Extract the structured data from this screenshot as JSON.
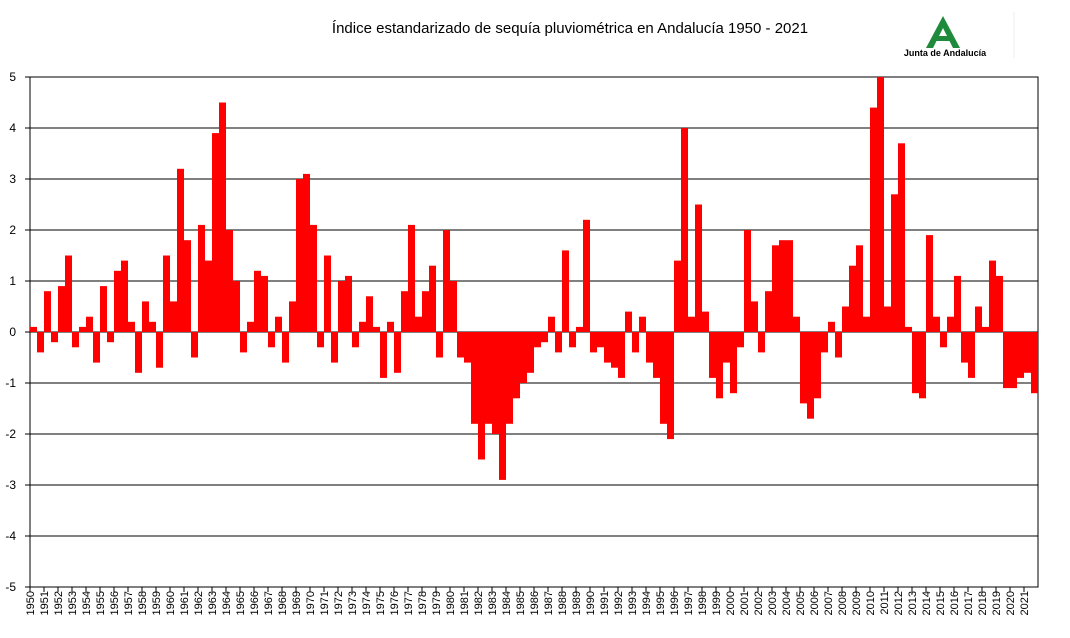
{
  "chart_data": {
    "type": "bar",
    "title": "Índice estandarizado de sequía pluviométrica en Andalucía 1950 - 2021",
    "logo_text": "Junta de Andalucía",
    "color": "#ff0000",
    "grid": true,
    "xlim": [
      1950,
      2022
    ],
    "ylim": [
      -5,
      5
    ],
    "yticks": [
      -5,
      -4,
      -3,
      -2,
      -1,
      0,
      1,
      2,
      3,
      4,
      5
    ],
    "xticks": [
      1950,
      1951,
      1952,
      1953,
      1954,
      1955,
      1956,
      1957,
      1958,
      1959,
      1960,
      1961,
      1962,
      1963,
      1964,
      1965,
      1966,
      1967,
      1968,
      1969,
      1970,
      1971,
      1972,
      1973,
      1974,
      1975,
      1976,
      1977,
      1978,
      1979,
      1980,
      1981,
      1982,
      1983,
      1984,
      1985,
      1986,
      1987,
      1988,
      1989,
      1990,
      1991,
      1992,
      1993,
      1994,
      1995,
      1996,
      1997,
      1998,
      1999,
      2000,
      2001,
      2002,
      2003,
      2004,
      2005,
      2006,
      2007,
      2008,
      2009,
      2010,
      2011,
      2012,
      2013,
      2014,
      2015,
      2016,
      2017,
      2018,
      2019,
      2020,
      2021
    ],
    "x": [
      1950,
      1950.5,
      1951,
      1951.5,
      1952,
      1952.5,
      1953,
      1953.5,
      1954,
      1954.5,
      1955,
      1955.5,
      1956,
      1956.5,
      1957,
      1957.5,
      1958,
      1958.5,
      1959,
      1959.5,
      1960,
      1960.5,
      1961,
      1961.5,
      1962,
      1962.5,
      1963,
      1963.5,
      1964,
      1964.5,
      1965,
      1965.5,
      1966,
      1966.5,
      1967,
      1967.5,
      1968,
      1968.5,
      1969,
      1969.5,
      1970,
      1970.5,
      1971,
      1971.5,
      1972,
      1972.5,
      1973,
      1973.5,
      1974,
      1974.5,
      1975,
      1975.5,
      1976,
      1976.5,
      1977,
      1977.5,
      1978,
      1978.5,
      1979,
      1979.5,
      1980,
      1980.5,
      1981,
      1981.5,
      1982,
      1982.5,
      1983,
      1983.5,
      1984,
      1984.5,
      1985,
      1985.5,
      1986,
      1986.5,
      1987,
      1987.5,
      1988,
      1988.5,
      1989,
      1989.5,
      1990,
      1990.5,
      1991,
      1991.5,
      1992,
      1992.5,
      1993,
      1993.5,
      1994,
      1994.5,
      1995,
      1995.5,
      1996,
      1996.5,
      1997,
      1997.5,
      1998,
      1998.5,
      1999,
      1999.5,
      2000,
      2000.5,
      2001,
      2001.5,
      2002,
      2002.5,
      2003,
      2003.5,
      2004,
      2004.5,
      2005,
      2005.5,
      2006,
      2006.5,
      2007,
      2007.5,
      2008,
      2008.5,
      2009,
      2009.5,
      2010,
      2010.5,
      2011,
      2011.5,
      2012,
      2012.5,
      2013,
      2013.5,
      2014,
      2014.5,
      2015,
      2015.5,
      2016,
      2016.5,
      2017,
      2017.5,
      2018,
      2018.5,
      2019,
      2019.5,
      2020,
      2020.5,
      2021,
      2021.5
    ],
    "values": [
      0.1,
      -0.4,
      0.8,
      -0.2,
      0.9,
      1.5,
      -0.3,
      0.1,
      0.3,
      -0.6,
      0.9,
      -0.2,
      1.2,
      1.4,
      0.2,
      -0.8,
      0.6,
      0.2,
      -0.7,
      1.5,
      0.6,
      3.2,
      1.8,
      -0.5,
      2.1,
      1.4,
      3.9,
      4.5,
      2.0,
      1.0,
      -0.4,
      0.2,
      1.2,
      1.1,
      -0.3,
      0.3,
      -0.6,
      0.6,
      3.0,
      3.1,
      2.1,
      -0.3,
      1.5,
      -0.6,
      1.0,
      1.1,
      -0.3,
      0.2,
      0.7,
      0.1,
      -0.9,
      0.2,
      -0.8,
      0.8,
      2.1,
      0.3,
      0.8,
      1.3,
      -0.5,
      2.0,
      1.0,
      -0.5,
      -0.6,
      -1.8,
      -2.5,
      -1.8,
      -2.0,
      -2.9,
      -1.8,
      -1.3,
      -1.0,
      -0.8,
      -0.3,
      -0.2,
      0.3,
      -0.4,
      1.6,
      -0.3,
      0.1,
      2.2,
      -0.4,
      -0.3,
      -0.6,
      -0.7,
      -0.9,
      0.4,
      -0.4,
      0.3,
      -0.6,
      -0.9,
      -1.8,
      -2.1,
      1.4,
      4.0,
      0.3,
      2.5,
      0.4,
      -0.9,
      -1.3,
      -0.6,
      -1.2,
      -0.3,
      2.0,
      0.6,
      -0.4,
      0.8,
      1.7,
      1.8,
      1.8,
      0.3,
      -1.4,
      -1.7,
      -1.3,
      -0.4,
      0.2,
      -0.5,
      0.5,
      1.3,
      1.7,
      0.3,
      4.4,
      5.0,
      0.5,
      2.7,
      3.7,
      0.1,
      -1.2,
      -1.3,
      1.9,
      0.3,
      -0.3,
      0.3,
      1.1,
      -0.6,
      -0.9,
      0.5,
      0.1,
      1.4,
      1.1,
      -1.1,
      -1.1,
      -0.9,
      -0.8,
      -1.2
    ]
  }
}
